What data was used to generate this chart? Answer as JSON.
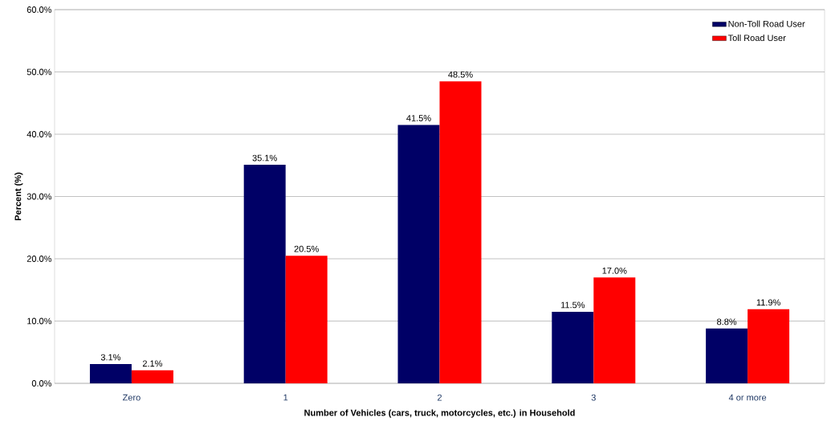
{
  "chart_data": {
    "type": "bar",
    "xlabel": "Number of Vehicles (cars, truck, motorcycles, etc.) in Household",
    "ylabel": "Percent (%)",
    "categories": [
      "Zero",
      "1",
      "2",
      "3",
      "4 or more"
    ],
    "series": [
      {
        "name": "Non-Toll Road User",
        "color": "#000066",
        "values": [
          3.1,
          35.1,
          41.5,
          11.5,
          8.8
        ],
        "value_labels": [
          "3.1%",
          "35.1%",
          "41.5%",
          "11.5%",
          "8.8%"
        ]
      },
      {
        "name": "Toll Road User",
        "color": "#ff0000",
        "values": [
          2.1,
          20.5,
          48.5,
          17.0,
          11.9
        ],
        "value_labels": [
          "2.1%",
          "20.5%",
          "48.5%",
          "17.0%",
          "11.9%"
        ]
      }
    ],
    "ylim": [
      0,
      60
    ],
    "yticks": [
      {
        "value": 0,
        "label": "0.0%"
      },
      {
        "value": 10,
        "label": "10.0%"
      },
      {
        "value": 20,
        "label": "20.0%"
      },
      {
        "value": 30,
        "label": "30.0%"
      },
      {
        "value": 40,
        "label": "40.0%"
      },
      {
        "value": 50,
        "label": "50.0%"
      },
      {
        "value": 60,
        "label": "60.0%"
      }
    ],
    "grid": "y",
    "legend": "top right"
  }
}
